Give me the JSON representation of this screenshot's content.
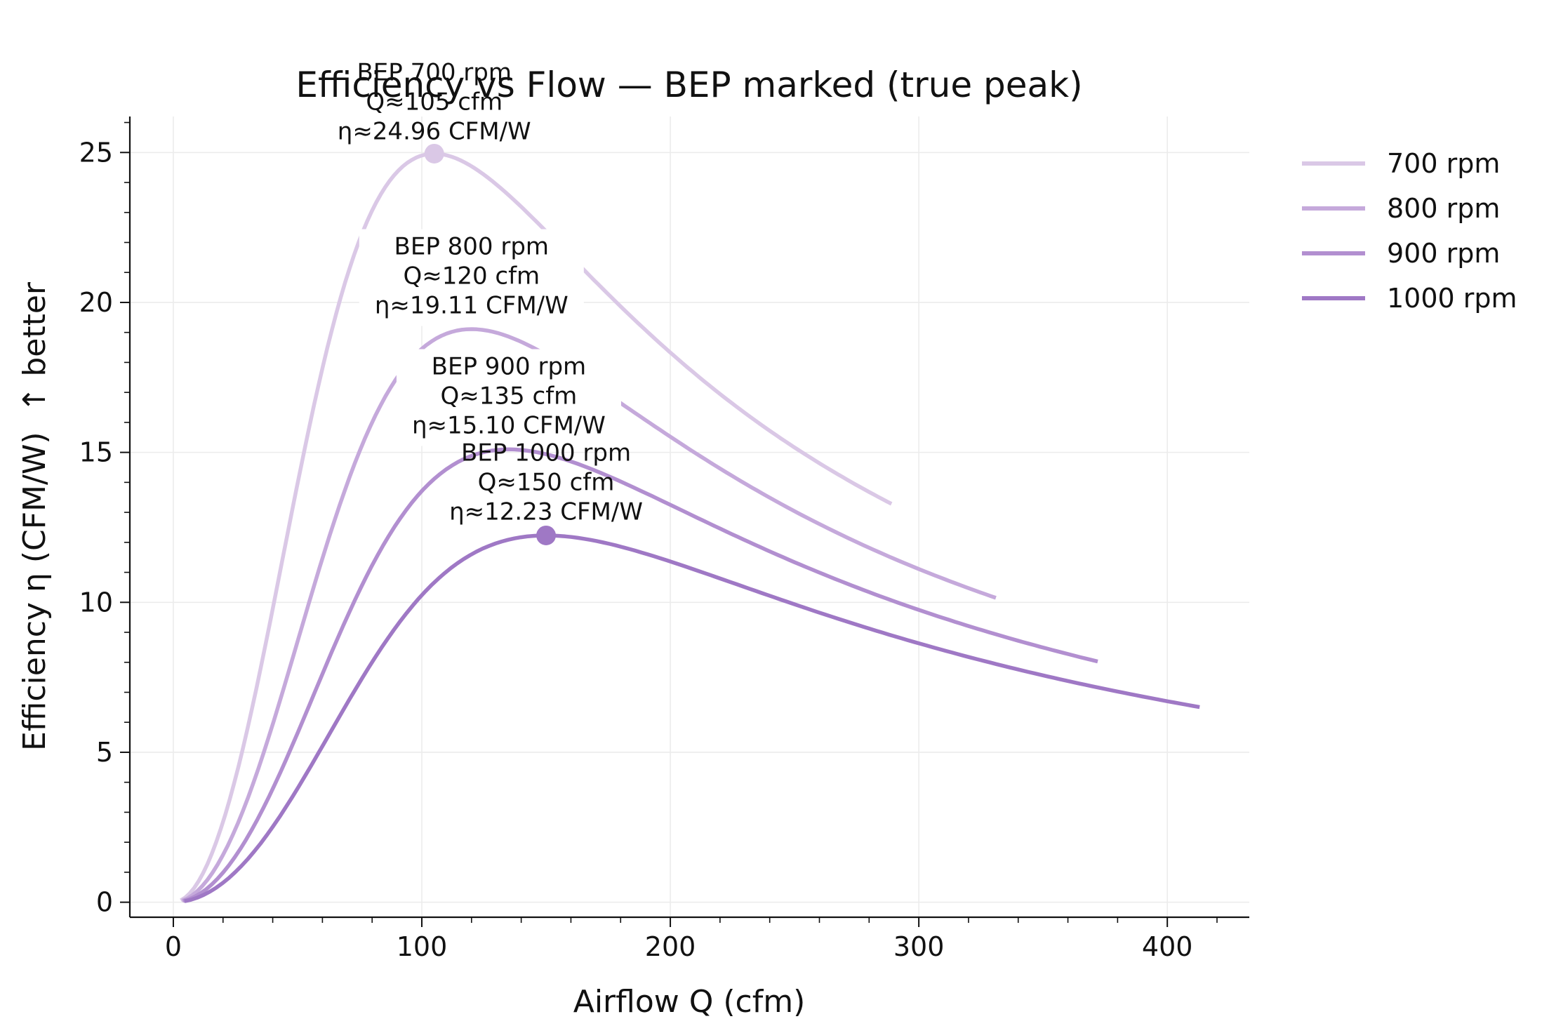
{
  "chart_data": {
    "type": "line",
    "title": "Efficiency vs Flow — BEP marked (true peak)",
    "xlabel": "Airflow Q (cfm)",
    "ylabel": "Efficiency η (CFM/W)  ↑ better",
    "xlim": [
      -17.5,
      433
    ],
    "ylim": [
      -0.5,
      26.2
    ],
    "xticks": [
      0,
      100,
      200,
      300,
      400
    ],
    "yticks": [
      0,
      5,
      10,
      15,
      20,
      25
    ],
    "grid": true,
    "legend_position": "outside-top-right",
    "series": [
      {
        "name": "700 rpm",
        "label": "700 rpm",
        "color": "#dac8e6",
        "peak_q": 105,
        "peak_eta": 24.96,
        "q_min": 3,
        "q_max": 289
      },
      {
        "name": "800 rpm",
        "label": "800 rpm",
        "color": "#c5a9db",
        "peak_q": 120,
        "peak_eta": 19.11,
        "q_min": 3.5,
        "q_max": 331
      },
      {
        "name": "900 rpm",
        "label": "900 rpm",
        "color": "#b28fd0",
        "peak_q": 135,
        "peak_eta": 15.1,
        "q_min": 4,
        "q_max": 372
      },
      {
        "name": "1000 rpm",
        "label": "1000 rpm",
        "color": "#9f78c5",
        "peak_q": 150,
        "peak_eta": 12.23,
        "q_min": 4.5,
        "q_max": 413
      }
    ],
    "annotations": [
      {
        "series": "700 rpm",
        "q": 105,
        "eta": 24.96,
        "lines": [
          "BEP 700 rpm",
          "Q≈105 cfm",
          "η≈24.96 CFM/W"
        ],
        "marker": true,
        "text_q": 105,
        "text_eta": 27.4
      },
      {
        "series": "800 rpm",
        "q": 120,
        "eta": 19.11,
        "lines": [
          "BEP 800 rpm",
          "Q≈120 cfm",
          "η≈19.11 CFM/W"
        ],
        "marker": false,
        "text_q": 120,
        "text_eta": 21.6
      },
      {
        "series": "900 rpm",
        "q": 135,
        "eta": 15.1,
        "lines": [
          "BEP 900 rpm",
          "Q≈135 cfm",
          "η≈15.10 CFM/W"
        ],
        "marker": false,
        "text_q": 135,
        "text_eta": 17.6
      },
      {
        "series": "1000 rpm",
        "q": 150,
        "eta": 12.23,
        "lines": [
          "BEP 1000 rpm",
          "Q≈150 cfm",
          "η≈12.23 CFM/W"
        ],
        "marker": true,
        "text_q": 150,
        "text_eta": 14.72
      }
    ]
  }
}
